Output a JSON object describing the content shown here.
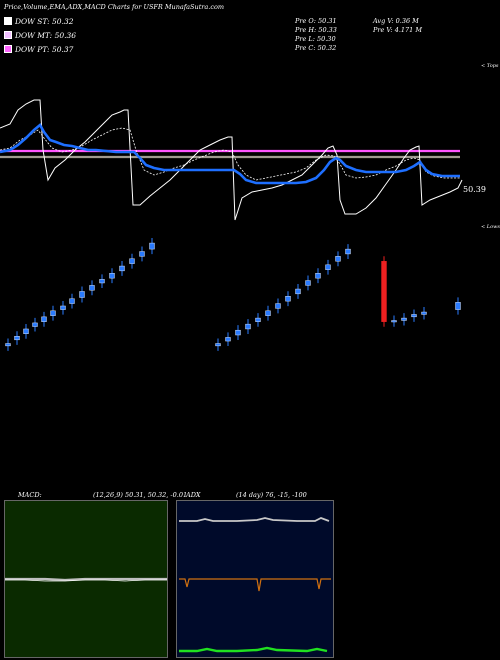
{
  "header": {
    "title": "Price,Volume,EMA,ADX,MACD Charts for USFR MunafaSutra.com"
  },
  "legend": [
    {
      "label": "DOW ST: 50.32",
      "color": "#ffffff"
    },
    {
      "label": "DOW MT: 50.36",
      "color": "#f0c0ff"
    },
    {
      "label": "DOW PT: 50.37",
      "color": "#ff66ff"
    }
  ],
  "stats": {
    "col1": [
      "Pre O: 50.31",
      "Pre H: 50.33",
      "Pre L: 50.30",
      "Pre C: 50.32"
    ],
    "col2": [
      "Avg V: 0.36 M",
      "Pre V: 4.171 M"
    ]
  },
  "annotations": {
    "tops": "< Tops",
    "lows": "< Lows",
    "last_price": "50.39"
  },
  "macd": {
    "label": "MACD:",
    "params": "(12,26,9) 50.31, 50.32, -0.01"
  },
  "adx": {
    "label": "ADX",
    "params": "(14 day) 76, -15, -100"
  },
  "colors": {
    "bg": "#000000",
    "blue_line": "#1e6fff",
    "pink_line": "#ff55ff",
    "grey_line": "#a09a90",
    "candle_blue": "#2a7bff",
    "candle_red": "#ee2020",
    "macd_bg": "#0a2a00",
    "adx_bg": "#000a2a",
    "adx_orange": "#d07010",
    "adx_green": "#20e020"
  },
  "chart_data": {
    "type": "line",
    "title": "Price,Volume,EMA,ADX,MACD Charts for USFR MunafaSutra.com",
    "xlabel": "",
    "ylabel": "",
    "series": [
      {
        "name": "DOW ST: 50.32",
        "values": [
          50.32
        ]
      },
      {
        "name": "DOW MT: 50.36",
        "values": [
          50.36
        ]
      },
      {
        "name": "DOW PT: 50.37",
        "values": [
          50.37
        ]
      }
    ],
    "last_value": 50.39,
    "candles": [
      {
        "o": 0.1,
        "c": 0.12
      },
      {
        "o": 0.15,
        "c": 0.18
      },
      {
        "o": 0.2,
        "c": 0.24
      },
      {
        "o": 0.26,
        "c": 0.29
      },
      {
        "o": 0.3,
        "c": 0.34
      },
      {
        "o": 0.35,
        "c": 0.39
      },
      {
        "o": 0.4,
        "c": 0.43
      },
      {
        "o": 0.45,
        "c": 0.49
      },
      {
        "o": 0.5,
        "c": 0.55
      },
      {
        "o": 0.56,
        "c": 0.6
      },
      {
        "o": 0.62,
        "c": 0.65
      },
      {
        "o": 0.66,
        "c": 0.7
      },
      {
        "o": 0.72,
        "c": 0.76
      },
      {
        "o": 0.78,
        "c": 0.82
      },
      {
        "o": 0.84,
        "c": 0.88
      },
      {
        "o": 0.9,
        "c": 0.95
      },
      {
        "o": 0.1,
        "c": 0.12
      },
      {
        "o": 0.14,
        "c": 0.17
      },
      {
        "o": 0.19,
        "c": 0.23
      },
      {
        "o": 0.24,
        "c": 0.28
      },
      {
        "o": 0.3,
        "c": 0.33
      },
      {
        "o": 0.35,
        "c": 0.39
      },
      {
        "o": 0.41,
        "c": 0.45
      },
      {
        "o": 0.47,
        "c": 0.51
      },
      {
        "o": 0.53,
        "c": 0.57
      },
      {
        "o": 0.6,
        "c": 0.64
      },
      {
        "o": 0.66,
        "c": 0.7
      },
      {
        "o": 0.73,
        "c": 0.77
      },
      {
        "o": 0.8,
        "c": 0.84
      },
      {
        "o": 0.86,
        "c": 0.9
      },
      {
        "o": 0.8,
        "c": 0.3
      },
      {
        "o": 0.3,
        "c": 0.31
      },
      {
        "o": 0.31,
        "c": 0.33
      },
      {
        "o": 0.34,
        "c": 0.36
      },
      {
        "o": 0.36,
        "c": 0.38
      },
      {
        "o": 0.4,
        "c": 0.46
      }
    ]
  }
}
